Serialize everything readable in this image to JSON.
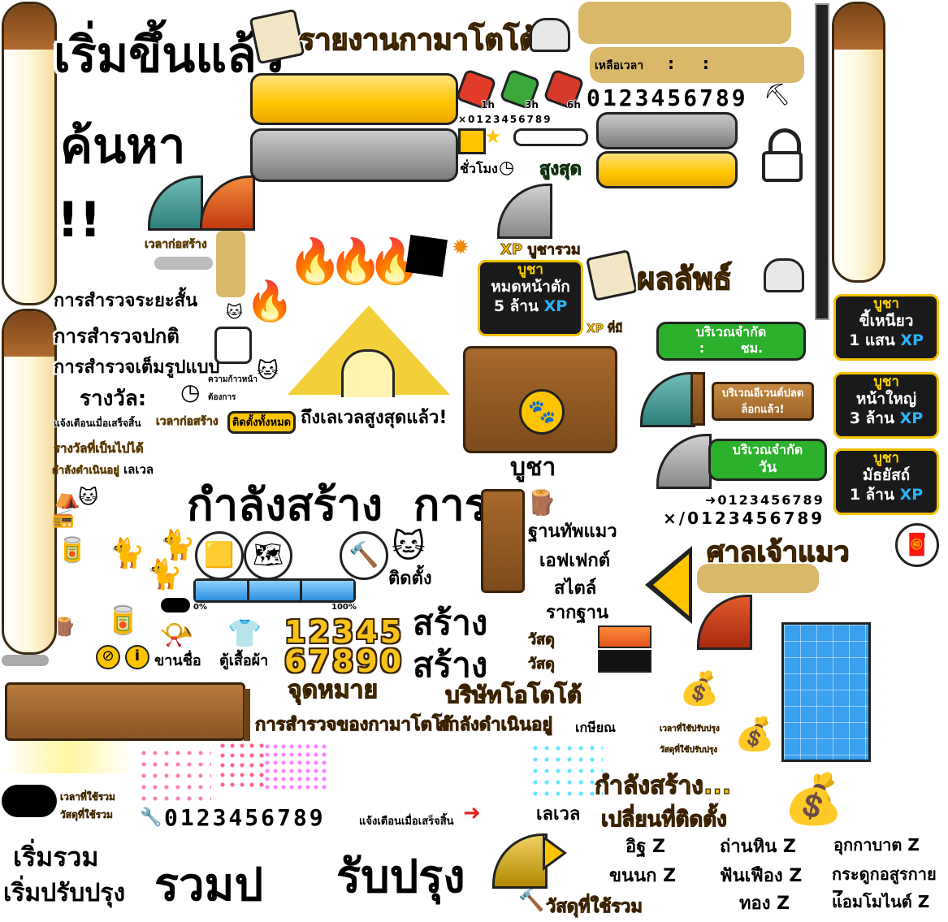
{
  "title_banner": "รายงานกามาโตโต้",
  "results_banner": "ผลลัพธ์",
  "start_headline": "เริ่มขึ้นแล้ว",
  "search_headline": "ค้นหา",
  "exclaim": "!!",
  "build_time_label": "เวลาก่อสร้าง",
  "explore": {
    "short": "การสำรวจระยะสั้น",
    "normal": "การสำรวจปกติ",
    "full": "การสำรวจเต็มรูปแบบ"
  },
  "reward_label": "รางวัล:",
  "notify_done": "แจ้งเตือนเมื่อเสร็จสิ้น",
  "build_time_btn": "เวลาก่อสร้าง",
  "install_all": "ติดตั้งทั้งหมด",
  "max_level_reached": "ถึงเลเวลสูงสุดแล้ว!",
  "possible_rewards": "รางวัลที่เป็นไปได้",
  "in_progress": "กำลังดำเนินอยู่",
  "level": "เลเวล",
  "progress_small": "ความก้าวหน้า",
  "required_small": "ต้องการ",
  "building_header": "กำลังสร้าง  การ",
  "install": "ติดตั้ง",
  "hours": "ชั่วโมง",
  "max": "สูงสุด",
  "remaining_time": "เหลือเวลา",
  "time_colons": ":     :",
  "digits": "0123456789",
  "digits_x": "×0123456789",
  "potion_times": [
    "1h",
    "3h",
    "6h"
  ],
  "xp_offer_total": "XP บูชารวม",
  "xp_owned": "XP ที่มี",
  "offer": "บูชา",
  "offers": [
    {
      "title": "บูชา",
      "line1": "หมดหน้าตัก",
      "amount": "5 ล้าน",
      "xp": "XP"
    },
    {
      "title": "บูชา",
      "line1": "ขี้เหนียว",
      "amount": "1 แสน",
      "xp": "XP"
    },
    {
      "title": "บูชา",
      "line1": "หน้าใหญ่",
      "amount": "3 ล้าน",
      "xp": "XP"
    },
    {
      "title": "บูชา",
      "line1": "มัธยัสถ์",
      "amount": "1 ล้าน",
      "xp": "XP"
    }
  ],
  "limited_area": "บริเวณจำกัด",
  "limited_hours": ":        ชม.",
  "limited_days": "วัน",
  "event_unlocked": "บริเวณอีเวนต์ปลดล็อกแล้ว!",
  "arrow_digits": "➜0123456789",
  "times_digits": "×/0123456789",
  "cat_shrine": "ศาลเจ้าแมว",
  "base_items": [
    "ฐานทัพแมว",
    "เอฟเฟกต์",
    "สไตล์",
    "รากฐาน"
  ],
  "build_words": [
    "สร้าง",
    "สร้าง"
  ],
  "materials": [
    "วัสดุ",
    "วัสดุ"
  ],
  "pct0": "0%",
  "pct100": "100%",
  "gold_digits": [
    "12345",
    "67890"
  ],
  "trade": "ขานชื่อ",
  "wardrobe": "ตู้เสื้อผ้า",
  "goal": "จุดหมาย",
  "company": "บริษัทโอโตโต้",
  "expedition_long": "การสำรวจของกามาโตโต้",
  "in_progress_big": "กำลังดำเนินอยู่",
  "retire": "เกษียณ",
  "upgrade_time": "เวลาที่ใช้ปรับปรุง",
  "upgrade_mats": "วัสดุที่ใช้ปรับปรุง",
  "total_time": "เวลาที่ใช้รวม",
  "total_mats": "วัสดุที่ใช้รวม",
  "building_dots": "กำลังสร้าง...",
  "change_install": "เปลี่ยนที่ติดตั้ง",
  "wrench_digits": "0123456789",
  "notify_done2": "แจ้งเตือนเมื่อเสร็จสิ้น",
  "level2": "เลเวล",
  "start_combine": "เริ่มรวม",
  "start_upgrade": "เริ่มปรับปรุง",
  "combine": "รวมป",
  "upgrade": "รับปรุง",
  "total_mats2": "วัสดุที่ใช้รวม",
  "mat_items": [
    [
      "อิฐ Z",
      "ขนนก Z"
    ],
    [
      "ถ่านหิน Z",
      "ฟันเฟือง Z",
      "ทอง Z"
    ],
    [
      "อุกกาบาต Z",
      "กระดูกอสูรกาย Z",
      "แอมโมไนต์ Z"
    ]
  ],
  "colors": {
    "gold": "#ffc400",
    "green": "#2bb12b",
    "xp": "#2bb4ff",
    "brown": "#8a5424"
  }
}
